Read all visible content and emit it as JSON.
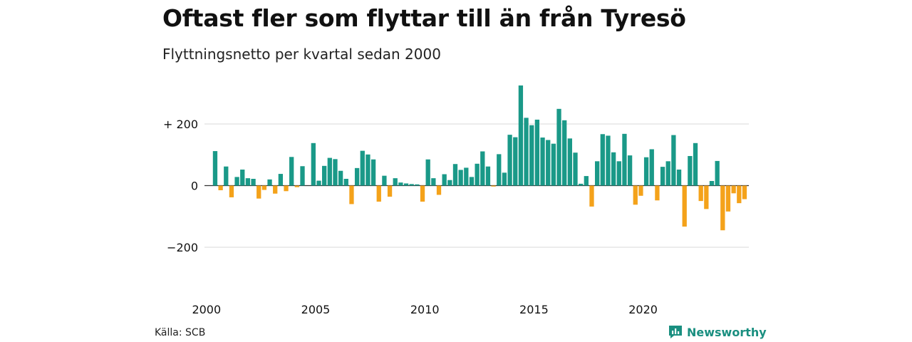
{
  "title": "Oftast fler som flyttar till än från Tyresö",
  "subtitle": "Flyttningsnetto per kvartal sedan 2000",
  "source": "Källa: SCB",
  "brand": "Newsworthy",
  "colors": {
    "positive": "#1a9988",
    "negative": "#f4a21a",
    "grid": "#d9d9d9",
    "brand": "#1a8f80"
  },
  "chart_data": {
    "type": "bar",
    "x_start": "2000 Q1",
    "x_ticks": [
      "2000",
      "2005",
      "2010",
      "2015",
      "2020"
    ],
    "y_ticks": [
      {
        "value": 200,
        "label": "+ 200"
      },
      {
        "value": 0,
        "label": "0"
      },
      {
        "value": -200,
        "label": "−200"
      }
    ],
    "ylim": [
      -330,
      330
    ],
    "grid": true,
    "values": [
      112,
      -15,
      62,
      -38,
      28,
      52,
      24,
      22,
      -42,
      -14,
      20,
      -26,
      38,
      -18,
      93,
      -5,
      63,
      0,
      138,
      16,
      64,
      90,
      86,
      48,
      22,
      -60,
      57,
      113,
      101,
      85,
      -52,
      32,
      -36,
      24,
      10,
      7,
      5,
      4,
      -52,
      85,
      24,
      -30,
      37,
      18,
      70,
      51,
      58,
      28,
      71,
      111,
      62,
      -3,
      102,
      42,
      165,
      157,
      325,
      220,
      196,
      214,
      156,
      148,
      136,
      249,
      212,
      153,
      107,
      6,
      31,
      -68,
      79,
      167,
      162,
      108,
      79,
      168,
      98,
      -62,
      -33,
      92,
      118,
      -48,
      61,
      79,
      164,
      52,
      -133,
      96,
      138,
      -50,
      -76,
      15,
      80,
      -145,
      -84,
      -25,
      -57,
      -44
    ]
  }
}
